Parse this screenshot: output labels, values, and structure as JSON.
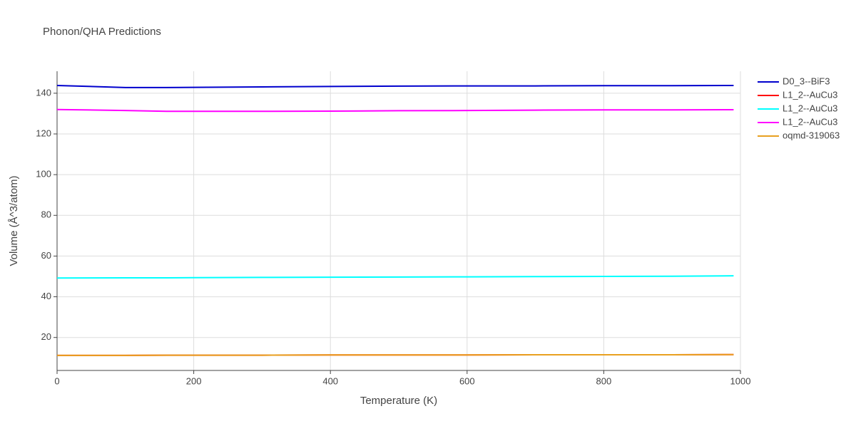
{
  "chart_data": {
    "type": "line",
    "title": "Phonon/QHA Predictions",
    "x_label": "Temperature (K)",
    "y_label": "Volume (Å^3/atom)",
    "x": [
      0,
      100,
      160,
      200,
      300,
      400,
      500,
      600,
      700,
      800,
      900,
      990
    ],
    "series": [
      {
        "name": "D0_3--BiF3",
        "color": "#0000cd",
        "values": [
          143.8,
          142.8,
          142.8,
          142.9,
          143.1,
          143.3,
          143.5,
          143.6,
          143.6,
          143.7,
          143.7,
          143.8
        ]
      },
      {
        "name": "L1_2--AuCu3",
        "color": "#ff0000",
        "values": [
          11.2,
          11.2,
          11.3,
          11.3,
          11.3,
          11.4,
          11.4,
          11.4,
          11.5,
          11.5,
          11.5,
          11.6
        ]
      },
      {
        "name": "L1_2--AuCu3",
        "color": "#00ffff",
        "values": [
          49.2,
          49.3,
          49.3,
          49.4,
          49.5,
          49.6,
          49.7,
          49.8,
          49.9,
          50.0,
          50.1,
          50.3
        ]
      },
      {
        "name": "L1_2--AuCu3",
        "color": "#ff00ff",
        "values": [
          132.0,
          131.5,
          131.1,
          131.1,
          131.1,
          131.2,
          131.4,
          131.5,
          131.7,
          131.8,
          131.8,
          131.9
        ]
      },
      {
        "name": "oqmd-319063",
        "color": "#e8a020",
        "values": [
          11.2,
          11.2,
          11.3,
          11.3,
          11.3,
          11.4,
          11.4,
          11.4,
          11.5,
          11.5,
          11.5,
          11.6
        ]
      }
    ],
    "xlim": [
      0,
      1000
    ],
    "xticks": [
      0,
      200,
      400,
      600,
      800,
      1000
    ],
    "ylim": [
      3.8,
      150.8
    ],
    "yticks": [
      20,
      40,
      60,
      80,
      100,
      120,
      140
    ],
    "grid": true,
    "legend": "right"
  }
}
